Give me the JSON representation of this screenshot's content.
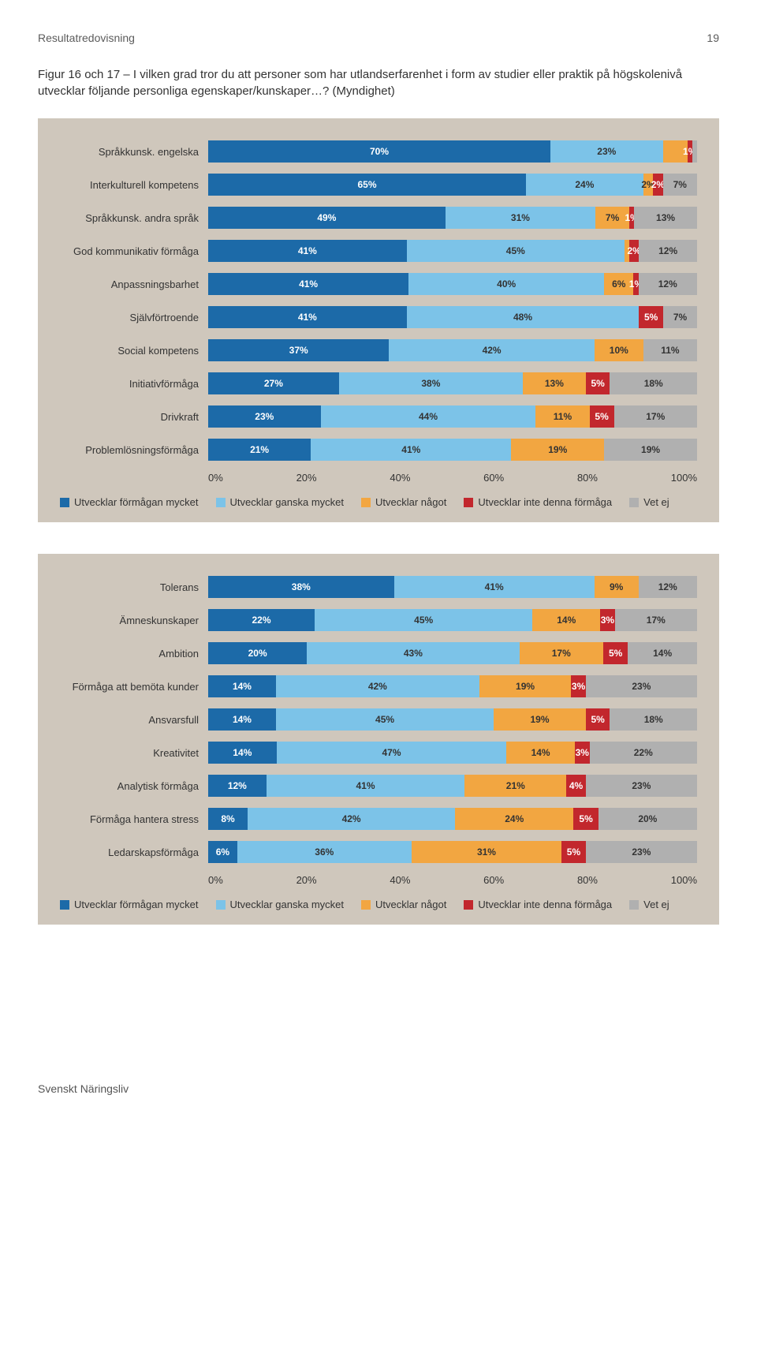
{
  "header": {
    "section_title": "Resultatredovisning",
    "page_number": "19"
  },
  "figure_caption": "Figur 16 och 17 – I vilken grad tror du att personer som har utlandserfarenhet i form av studier eller praktik på högskolenivå utvecklar följande personliga egenskaper/kunskaper…? (Myndighet)",
  "colors": {
    "series": [
      "#1c6aa8",
      "#7cc3e8",
      "#f2a641",
      "#c2272d",
      "#b0b0b0"
    ],
    "series_text_dark": [
      false,
      true,
      true,
      false,
      true
    ],
    "panel_bg": "#cfc7bc",
    "text": "#333333"
  },
  "legend": [
    "Utvecklar förmågan mycket",
    "Utvecklar ganska mycket",
    "Utvecklar något",
    "Utvecklar inte denna förmåga",
    "Vet ej"
  ],
  "axis": {
    "ticks": [
      "0%",
      "20%",
      "40%",
      "60%",
      "80%",
      "100%"
    ]
  },
  "chart1": {
    "type": "stacked-bar-horizontal",
    "rows": [
      {
        "label": "Språkkunsk. engelska",
        "segments": [
          {
            "v": 70,
            "t": "70%"
          },
          {
            "v": 23,
            "t": "23%"
          },
          {
            "v": 5,
            "t": ""
          },
          {
            "v": 1,
            "t": "1%"
          },
          {
            "v": 1,
            "t": ""
          }
        ]
      },
      {
        "label": "Interkulturell kompetens",
        "segments": [
          {
            "v": 65,
            "t": "65%"
          },
          {
            "v": 24,
            "t": "24%"
          },
          {
            "v": 2,
            "t": "2%"
          },
          {
            "v": 2,
            "t": "2%"
          },
          {
            "v": 7,
            "t": "7%"
          }
        ]
      },
      {
        "label": "Språkkunsk. andra språk",
        "segments": [
          {
            "v": 49,
            "t": "49%"
          },
          {
            "v": 31,
            "t": "31%"
          },
          {
            "v": 7,
            "t": "7%"
          },
          {
            "v": 1,
            "t": "1%"
          },
          {
            "v": 13,
            "t": "13%"
          }
        ]
      },
      {
        "label": "God kommunikativ förmåga",
        "segments": [
          {
            "v": 41,
            "t": "41%"
          },
          {
            "v": 45,
            "t": "45%"
          },
          {
            "v": 1,
            "t": ""
          },
          {
            "v": 2,
            "t": "2%"
          },
          {
            "v": 12,
            "t": "12%"
          }
        ]
      },
      {
        "label": "Anpassningsbarhet",
        "segments": [
          {
            "v": 41,
            "t": "41%"
          },
          {
            "v": 40,
            "t": "40%"
          },
          {
            "v": 6,
            "t": "6%"
          },
          {
            "v": 1,
            "t": "1%"
          },
          {
            "v": 12,
            "t": "12%"
          }
        ]
      },
      {
        "label": "Självförtroende",
        "segments": [
          {
            "v": 41,
            "t": "41%"
          },
          {
            "v": 48,
            "t": "48%"
          },
          {
            "v": 0,
            "t": ""
          },
          {
            "v": 5,
            "t": "5%"
          },
          {
            "v": 7,
            "t": "7%"
          }
        ]
      },
      {
        "label": "Social kompetens",
        "segments": [
          {
            "v": 37,
            "t": "37%"
          },
          {
            "v": 42,
            "t": "42%"
          },
          {
            "v": 10,
            "t": "10%"
          },
          {
            "v": 0,
            "t": ""
          },
          {
            "v": 11,
            "t": "11%"
          }
        ]
      },
      {
        "label": "Initiativförmåga",
        "segments": [
          {
            "v": 27,
            "t": "27%"
          },
          {
            "v": 38,
            "t": "38%"
          },
          {
            "v": 13,
            "t": "13%"
          },
          {
            "v": 5,
            "t": "5%"
          },
          {
            "v": 18,
            "t": "18%"
          }
        ]
      },
      {
        "label": "Drivkraft",
        "segments": [
          {
            "v": 23,
            "t": "23%"
          },
          {
            "v": 44,
            "t": "44%"
          },
          {
            "v": 11,
            "t": "11%"
          },
          {
            "v": 5,
            "t": "5%"
          },
          {
            "v": 17,
            "t": "17%"
          }
        ]
      },
      {
        "label": "Problemlösningsförmåga",
        "segments": [
          {
            "v": 21,
            "t": "21%"
          },
          {
            "v": 41,
            "t": "41%"
          },
          {
            "v": 19,
            "t": "19%"
          },
          {
            "v": 0,
            "t": ""
          },
          {
            "v": 19,
            "t": "19%"
          }
        ]
      }
    ]
  },
  "chart2": {
    "type": "stacked-bar-horizontal",
    "rows": [
      {
        "label": "Tolerans",
        "segments": [
          {
            "v": 38,
            "t": "38%"
          },
          {
            "v": 41,
            "t": "41%"
          },
          {
            "v": 9,
            "t": "9%"
          },
          {
            "v": 0,
            "t": ""
          },
          {
            "v": 12,
            "t": "12%"
          }
        ]
      },
      {
        "label": "Ämneskunskaper",
        "segments": [
          {
            "v": 22,
            "t": "22%"
          },
          {
            "v": 45,
            "t": "45%"
          },
          {
            "v": 14,
            "t": "14%"
          },
          {
            "v": 3,
            "t": "3%"
          },
          {
            "v": 17,
            "t": "17%"
          }
        ]
      },
      {
        "label": "Ambition",
        "segments": [
          {
            "v": 20,
            "t": "20%"
          },
          {
            "v": 43,
            "t": "43%"
          },
          {
            "v": 17,
            "t": "17%"
          },
          {
            "v": 5,
            "t": "5%"
          },
          {
            "v": 14,
            "t": "14%"
          }
        ]
      },
      {
        "label": "Förmåga att bemöta kunder",
        "segments": [
          {
            "v": 14,
            "t": "14%"
          },
          {
            "v": 42,
            "t": "42%"
          },
          {
            "v": 19,
            "t": "19%"
          },
          {
            "v": 3,
            "t": "3%"
          },
          {
            "v": 23,
            "t": "23%"
          }
        ]
      },
      {
        "label": "Ansvarsfull",
        "segments": [
          {
            "v": 14,
            "t": "14%"
          },
          {
            "v": 45,
            "t": "45%"
          },
          {
            "v": 19,
            "t": "19%"
          },
          {
            "v": 5,
            "t": "5%"
          },
          {
            "v": 18,
            "t": "18%"
          }
        ]
      },
      {
        "label": "Kreativitet",
        "segments": [
          {
            "v": 14,
            "t": "14%"
          },
          {
            "v": 47,
            "t": "47%"
          },
          {
            "v": 14,
            "t": "14%"
          },
          {
            "v": 3,
            "t": "3%"
          },
          {
            "v": 22,
            "t": "22%"
          }
        ]
      },
      {
        "label": "Analytisk förmåga",
        "segments": [
          {
            "v": 12,
            "t": "12%"
          },
          {
            "v": 41,
            "t": "41%"
          },
          {
            "v": 21,
            "t": "21%"
          },
          {
            "v": 4,
            "t": "4%"
          },
          {
            "v": 23,
            "t": "23%"
          }
        ]
      },
      {
        "label": "Förmåga hantera stress",
        "segments": [
          {
            "v": 8,
            "t": "8%"
          },
          {
            "v": 42,
            "t": "42%"
          },
          {
            "v": 24,
            "t": "24%"
          },
          {
            "v": 5,
            "t": "5%"
          },
          {
            "v": 20,
            "t": "20%"
          }
        ]
      },
      {
        "label": "Ledarskapsförmåga",
        "segments": [
          {
            "v": 6,
            "t": "6%"
          },
          {
            "v": 36,
            "t": "36%"
          },
          {
            "v": 31,
            "t": "31%"
          },
          {
            "v": 5,
            "t": "5%"
          },
          {
            "v": 23,
            "t": "23%"
          }
        ]
      }
    ]
  },
  "footer": {
    "org": "Svenskt Näringsliv"
  }
}
